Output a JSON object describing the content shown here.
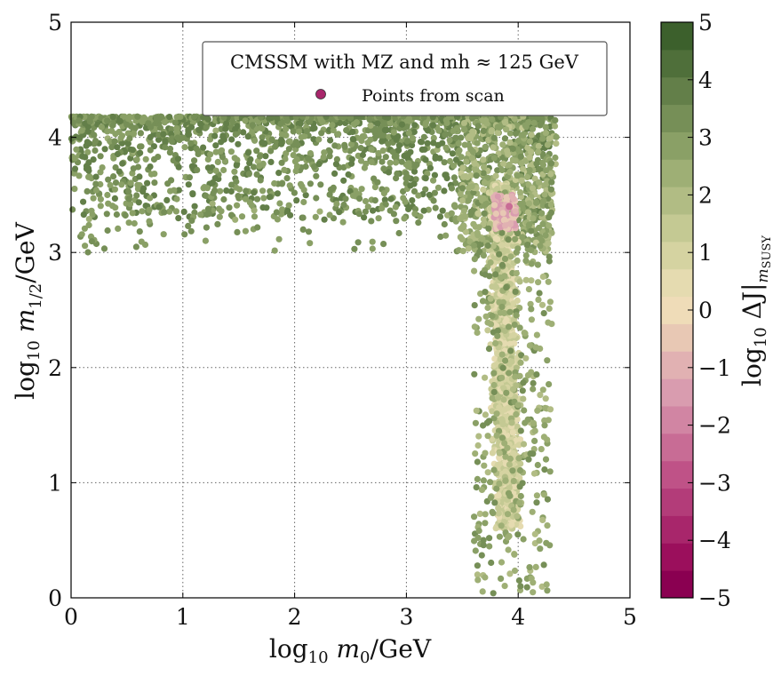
{
  "chart_data": {
    "type": "scatter",
    "xlabel": "log10 m0/GeV",
    "ylabel": "log10 m1/2/GeV",
    "xlim": [
      0,
      5
    ],
    "ylim": [
      0,
      5
    ],
    "xticks": [
      "0",
      "1",
      "2",
      "3",
      "4",
      "5"
    ],
    "yticks": [
      "0",
      "1",
      "2",
      "3",
      "4",
      "5"
    ],
    "grid": true,
    "legend": {
      "title": "CMSSM with MZ and mh ≈ 125 GeV",
      "entry": "Points from scan",
      "placement": "top-right"
    },
    "colorbar": {
      "label": "log10 ΔJ|mSUSY",
      "range": [
        -5,
        5
      ],
      "ticks": [
        "5",
        "4",
        "3",
        "2",
        "1",
        "0",
        "−1",
        "−2",
        "−3",
        "−4",
        "−5"
      ],
      "bands": [
        "#8a0051",
        "#9b0f5c",
        "#a8266b",
        "#b33c79",
        "#bf5287",
        "#c86c95",
        "#d185a3",
        "#d99caf",
        "#e1b1b2",
        "#e8c8b4",
        "#efdcb8",
        "#e5dbb0",
        "#d5d3a1",
        "#c4c993",
        "#b1bc84",
        "#9eaf75",
        "#8aa066",
        "#768f57",
        "#637f49",
        "#4f6f3a",
        "#3c602c"
      ],
      "top_color": "#2c5b1c"
    },
    "regions": [
      {
        "name": "upper band",
        "x": [
          0.0,
          4.3
        ],
        "y": [
          3.0,
          4.2
        ],
        "log10_dJ": [
          2.5,
          4.0
        ]
      },
      {
        "name": "vertical strip",
        "x": [
          3.5,
          4.3
        ],
        "y": [
          0.0,
          3.6
        ],
        "log10_dJ": [
          0.5,
          1.8
        ]
      },
      {
        "name": "fine-tuning minimum",
        "x": [
          3.75,
          4.0
        ],
        "y": [
          3.2,
          3.5
        ],
        "log10_dJ": [
          -1.5,
          -0.5
        ]
      }
    ]
  }
}
